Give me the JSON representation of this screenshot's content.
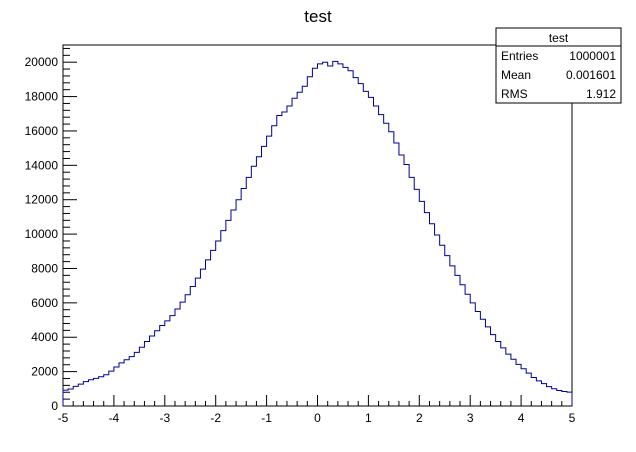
{
  "chart_data": {
    "type": "histogram",
    "title": "test",
    "xlabel": "",
    "ylabel": "",
    "xlim": [
      -5,
      5
    ],
    "ylim": [
      0,
      21000
    ],
    "grid": false,
    "bin_edges_range": [
      -5,
      5
    ],
    "n_bins": 100,
    "x_ticks": [
      "-5",
      "-4",
      "-3",
      "-2",
      "-1",
      "0",
      "1",
      "2",
      "3",
      "4",
      "5"
    ],
    "y_ticks": [
      "0",
      "2000",
      "4000",
      "6000",
      "8000",
      "10000",
      "12000",
      "14000",
      "16000",
      "18000",
      "20000"
    ],
    "series": [
      {
        "color": "#000099",
        "values": [
          920,
          990,
          1140,
          1270,
          1420,
          1530,
          1610,
          1700,
          1820,
          2030,
          2270,
          2510,
          2690,
          2870,
          3120,
          3420,
          3750,
          4070,
          4380,
          4680,
          4950,
          5260,
          5640,
          6040,
          6470,
          6950,
          7440,
          7960,
          8500,
          9050,
          9600,
          10200,
          10800,
          11400,
          12000,
          12650,
          13300,
          13950,
          14500,
          15100,
          15700,
          16300,
          16900,
          17100,
          17450,
          17900,
          18250,
          18600,
          19150,
          19650,
          19900,
          20000,
          19780,
          20050,
          19900,
          19700,
          19500,
          19100,
          18750,
          18300,
          17950,
          17450,
          16950,
          16450,
          15950,
          15300,
          14600,
          14050,
          13300,
          12600,
          11900,
          11250,
          10600,
          9950,
          9350,
          8750,
          8150,
          7600,
          7050,
          6500,
          6000,
          5500,
          5050,
          4600,
          4150,
          3750,
          3380,
          3020,
          2720,
          2420,
          2170,
          1910,
          1660,
          1460,
          1300,
          1130,
          1000,
          900,
          840,
          810
        ]
      }
    ],
    "stats_box": {
      "title": "test",
      "rows": [
        {
          "label": "Entries",
          "value": "1000001"
        },
        {
          "label": "Mean",
          "value": "0.001601"
        },
        {
          "label": "RMS",
          "value": "1.912"
        }
      ]
    }
  }
}
